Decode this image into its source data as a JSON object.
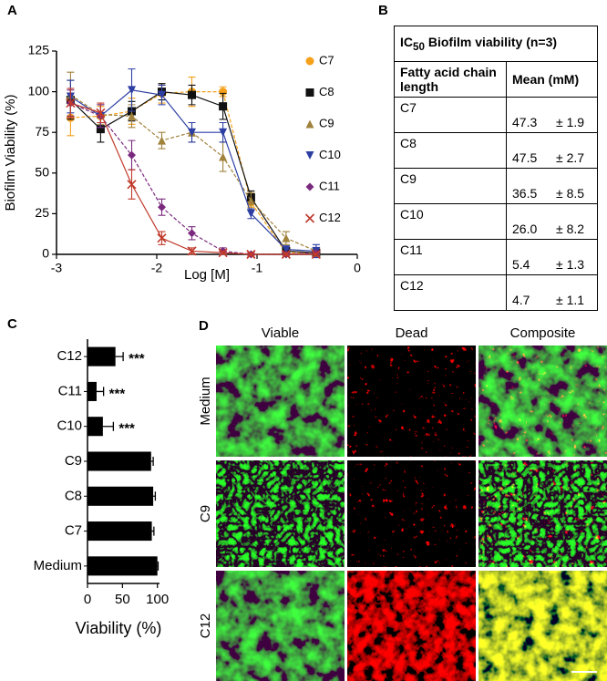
{
  "panels": {
    "a": "A",
    "b": "B",
    "c": "C",
    "d": "D"
  },
  "chart_data": [
    {
      "type": "line",
      "xlabel": "Log [M]",
      "ylabel": "Biofilm Viability (%)",
      "x": [
        -2.86,
        -2.56,
        -2.25,
        -1.95,
        -1.65,
        -1.34,
        -1.06,
        -0.71,
        -0.41
      ],
      "xlim": [
        -3,
        0
      ],
      "xticks": [
        -3,
        -2,
        -1,
        0
      ],
      "ylim": [
        0,
        125
      ],
      "yticks": [
        0,
        25,
        50,
        75,
        100,
        125
      ],
      "legend": "right",
      "series": [
        {
          "name": "C7",
          "color": "#f5a01a",
          "marker": "circle",
          "values": [
            84,
            85,
            88,
            99,
            100,
            100,
            32,
            1,
            1
          ],
          "errors": [
            11,
            6,
            8,
            6,
            9,
            3,
            3,
            1,
            1
          ]
        },
        {
          "name": "C8",
          "color": "#111111",
          "marker": "square",
          "values": [
            95,
            77,
            88,
            100,
            98,
            91,
            35,
            2,
            1
          ],
          "errors": [
            12,
            8,
            6,
            5,
            6,
            8,
            4,
            2,
            1
          ]
        },
        {
          "name": "C9",
          "color": "#a0823c",
          "marker": "triangle-up",
          "values": [
            98,
            86,
            85,
            70,
            75,
            60,
            33,
            10,
            2
          ],
          "errors": [
            14,
            6,
            7,
            5,
            6,
            9,
            5,
            4,
            2
          ]
        },
        {
          "name": "C10",
          "color": "#2e3fa3",
          "marker": "triangle-down",
          "values": [
            97,
            85,
            101,
            98,
            75,
            75,
            25,
            3,
            2
          ],
          "errors": [
            10,
            7,
            13,
            6,
            6,
            6,
            3,
            2,
            4
          ]
        },
        {
          "name": "C11",
          "color": "#7a2a7e",
          "marker": "diamond",
          "values": [
            93,
            85,
            61,
            29,
            13,
            2,
            0,
            0,
            1
          ],
          "errors": [
            8,
            7,
            9,
            5,
            4,
            2,
            1,
            1,
            1
          ]
        },
        {
          "name": "C12",
          "color": "#c0392b",
          "marker": "cross",
          "values": [
            93,
            87,
            43,
            10,
            2,
            1,
            0,
            0,
            0
          ],
          "errors": [
            9,
            6,
            9,
            4,
            2,
            1,
            1,
            1,
            1
          ]
        }
      ]
    },
    {
      "type": "barh",
      "xlabel": "Viability (%)",
      "categories": [
        "C12",
        "C11",
        "C10",
        "C9",
        "C8",
        "C7",
        "Medium"
      ],
      "values": [
        40,
        13,
        22,
        91,
        94,
        92,
        100
      ],
      "errors": [
        11,
        10,
        15,
        3,
        3,
        3,
        1
      ],
      "annotations": [
        "***",
        "***",
        "***",
        null,
        null,
        null,
        null
      ],
      "color": "#000000",
      "xlim": [
        0,
        103
      ],
      "xticks": [
        0,
        50,
        100
      ]
    }
  ],
  "table": {
    "title": {
      "main": "IC",
      "sub": "50",
      "rest": "Biofilm viability (n=3)"
    },
    "header": [
      "Fatty acid chain length",
      "Mean (mM)"
    ],
    "rows": [
      [
        "C7",
        "47.3",
        "± 1.9"
      ],
      [
        "C8",
        "47.5",
        "± 2.7"
      ],
      [
        "C9",
        "36.5",
        "± 8.5"
      ],
      [
        "C10",
        "26.0",
        "± 8.2"
      ],
      [
        "C11",
        "5.4",
        "± 1.3"
      ],
      [
        "C12",
        "4.7",
        "± 1.1"
      ]
    ]
  },
  "images": {
    "columns": [
      "Viable",
      "Dead",
      "Composite"
    ],
    "rows": [
      "Medium",
      "C9",
      "C12"
    ]
  }
}
